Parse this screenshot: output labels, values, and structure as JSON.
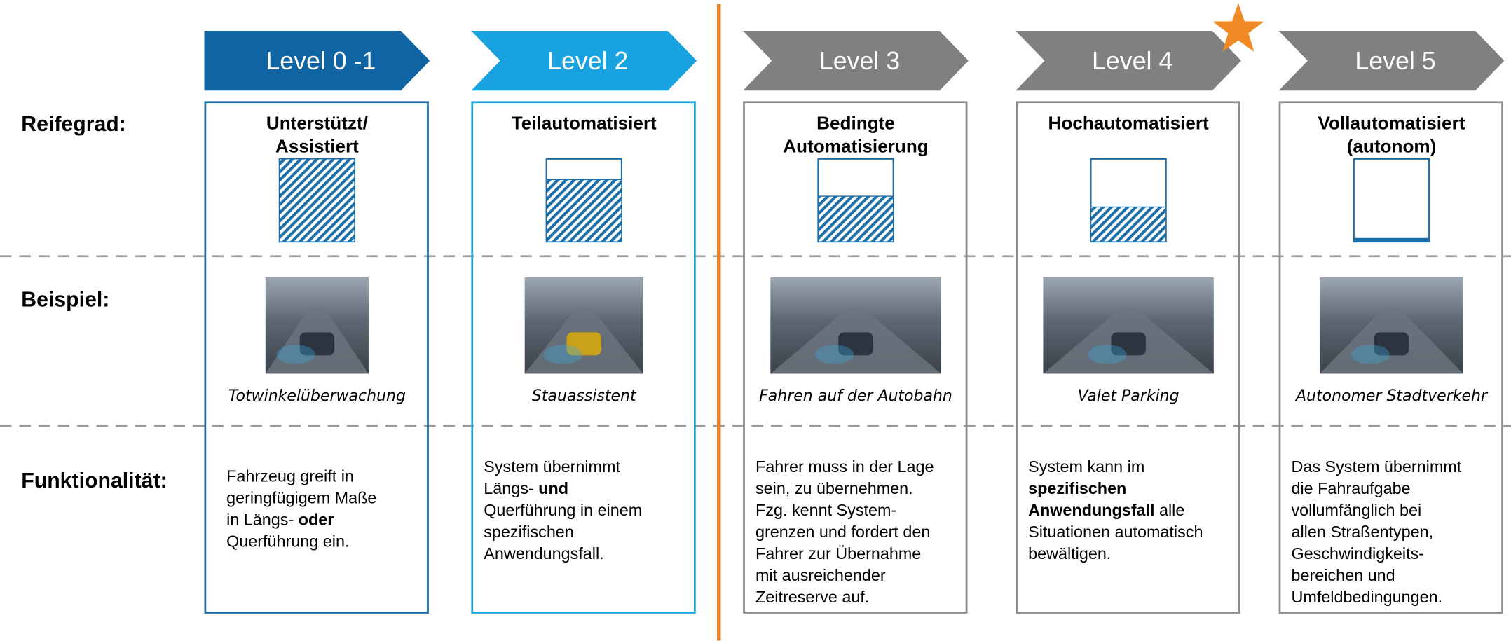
{
  "row_labels": [
    "Reifegrad:",
    "Beispiel:",
    "Funktionalität:"
  ],
  "levels": [
    {
      "label": "Level 0 -1",
      "maturity": [
        "Unterstützt/",
        "Assistiert"
      ],
      "example": "Totwinkelüberwachung",
      "functionality": [
        [
          "Fahrzeug greift in"
        ],
        [
          "geringfügigem Maße"
        ],
        [
          "in Längs- ",
          {
            "text": "oder",
            "bold": true
          }
        ],
        [
          "Querführung ein."
        ]
      ]
    },
    {
      "label": "Level 2",
      "maturity": [
        "Teilautomatisiert"
      ],
      "example": "Stauassistent",
      "functionality": [
        [
          "System übernimmt"
        ],
        [
          "Längs- ",
          {
            "text": "und",
            "bold": true
          }
        ],
        [
          "Querführung in einem"
        ],
        [
          "spezifischen"
        ],
        [
          "Anwendungsfall."
        ]
      ]
    },
    {
      "label": "Level 3",
      "maturity": [
        "Bedingte",
        "Automatisierung"
      ],
      "example": "Fahren auf der Autobahn",
      "functionality": [
        [
          "Fahrer muss in der Lage"
        ],
        [
          "sein, zu übernehmen."
        ],
        [
          "Fzg. kennt System-"
        ],
        [
          "grenzen und fordert den"
        ],
        [
          "Fahrer zur Übernahme"
        ],
        [
          "mit ausreichender"
        ],
        [
          "Zeitreserve auf."
        ]
      ]
    },
    {
      "label": "Level 4",
      "maturity": [
        "Hochautomatisiert"
      ],
      "example": "Valet Parking",
      "functionality": [
        [
          "System kann im"
        ],
        [
          {
            "text": "spezifischen",
            "bold": true
          }
        ],
        [
          {
            "text": "Anwendungsfall",
            "bold": true
          },
          " alle"
        ],
        [
          "Situationen automatisch"
        ],
        [
          "bewältigen."
        ]
      ]
    },
    {
      "label": "Level 5",
      "maturity": [
        "Vollautomatisiert",
        "(autonom)"
      ],
      "example": "Autonomer Stadtverkehr",
      "functionality": [
        [
          "Das System übernimmt"
        ],
        [
          "die Fahraufgabe"
        ],
        [
          "vollumfänglich bei"
        ],
        [
          "allen Straßentypen,"
        ],
        [
          "Geschwindigkeits-"
        ],
        [
          "bereichen und"
        ],
        [
          "Umfeldbedingungen."
        ]
      ]
    }
  ]
}
